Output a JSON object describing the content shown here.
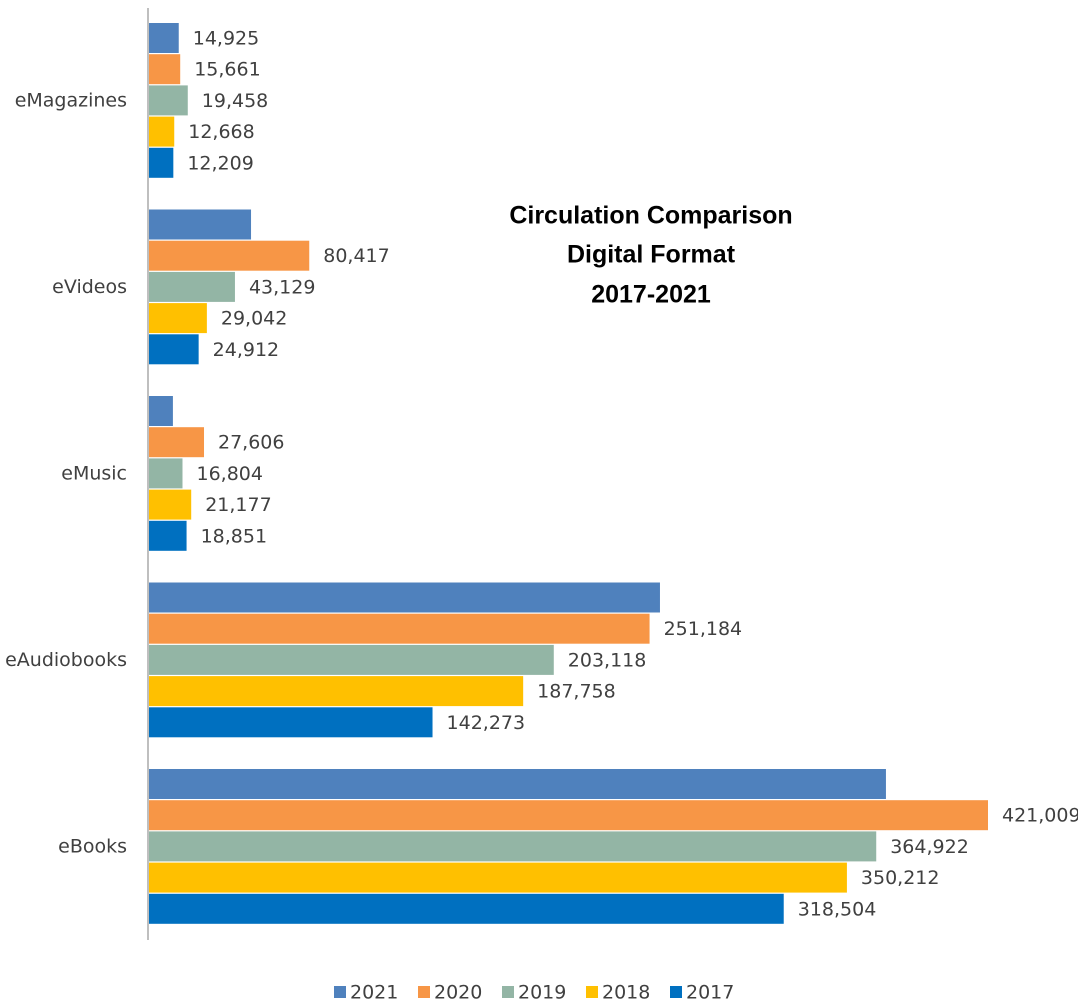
{
  "chart_data": {
    "type": "bar",
    "orientation": "horizontal",
    "title": [
      "Circulation Comparison",
      "Digital Format",
      "2017-2021"
    ],
    "categories": [
      "eMagazines",
      "eVideos",
      "eMusic",
      "eAudiobooks",
      "eBooks"
    ],
    "series": [
      {
        "name": "2021",
        "color": "#4f81bd",
        "values": [
          14925,
          51200,
          12000,
          256400,
          369800
        ],
        "value_labels": [
          "14,925",
          null,
          null,
          null,
          null
        ]
      },
      {
        "name": "2020",
        "color": "#f79646",
        "values": [
          15661,
          80417,
          27606,
          251184,
          421009
        ],
        "value_labels": [
          "15,661",
          "80,417",
          "27,606",
          "251,184",
          "421,009"
        ]
      },
      {
        "name": "2019",
        "color": "#93b5a5",
        "values": [
          19458,
          43129,
          16804,
          203118,
          364922
        ],
        "value_labels": [
          "19,458",
          "43,129",
          "16,804",
          "203,118",
          "364,922"
        ]
      },
      {
        "name": "2018",
        "color": "#ffc000",
        "values": [
          12668,
          29042,
          21177,
          187758,
          350212
        ],
        "value_labels": [
          "12,668",
          "29,042",
          "21,177",
          "187,758",
          "350,212"
        ]
      },
      {
        "name": "2017",
        "color": "#0070c0",
        "values": [
          12209,
          24912,
          18851,
          142273,
          318504
        ],
        "value_labels": [
          "12,209",
          "24,912",
          "18,851",
          "142,273",
          "318,504"
        ]
      }
    ],
    "legend": "bottom"
  }
}
